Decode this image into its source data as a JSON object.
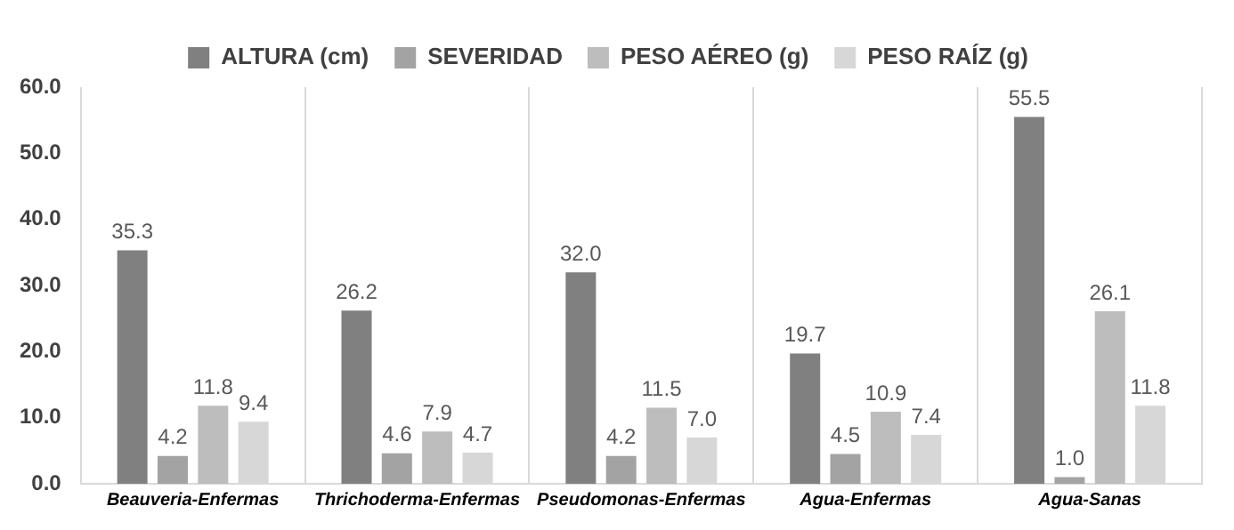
{
  "chart_data": {
    "type": "bar",
    "categories": [
      "Beauveria-Enfermas",
      "Thrichoderma-Enfermas",
      "Pseudomonas-Enfermas",
      "Agua-Enfermas",
      "Agua-Sanas"
    ],
    "series": [
      {
        "name": "ALTURA (cm)",
        "color": "#808080",
        "values": [
          35.3,
          26.2,
          32.0,
          19.7,
          55.5
        ],
        "value_labels": [
          "35.3",
          "26.2",
          "32.0",
          "19.7",
          "55.5"
        ]
      },
      {
        "name": "SEVERIDAD",
        "color": "#a3a3a3",
        "values": [
          4.2,
          4.6,
          4.2,
          4.5,
          1.0
        ],
        "value_labels": [
          "4.2",
          "4.6",
          "4.2",
          "4.5",
          "1.0"
        ]
      },
      {
        "name": "PESO AÉREO (g)",
        "color": "#bdbdbd",
        "values": [
          11.8,
          7.9,
          11.5,
          10.9,
          26.1
        ],
        "value_labels": [
          "11.8",
          "7.9",
          "11.5",
          "10.9",
          "26.1"
        ]
      },
      {
        "name": "PESO RAÍZ (g)",
        "color": "#d7d7d7",
        "values": [
          9.4,
          4.7,
          7.0,
          7.4,
          11.8
        ],
        "value_labels": [
          "9.4",
          "4.7",
          "7.0",
          "7.4",
          "11.8"
        ]
      }
    ],
    "ylim": [
      0,
      60
    ],
    "yticks": [
      {
        "value": 0,
        "label": "0.0"
      },
      {
        "value": 10,
        "label": "10.0"
      },
      {
        "value": 20,
        "label": "20.0"
      },
      {
        "value": 30,
        "label": "30.0"
      },
      {
        "value": 40,
        "label": "40.0"
      },
      {
        "value": 50,
        "label": "50.0"
      },
      {
        "value": 60,
        "label": "60.0"
      }
    ],
    "grid": "x",
    "legend": "top"
  }
}
